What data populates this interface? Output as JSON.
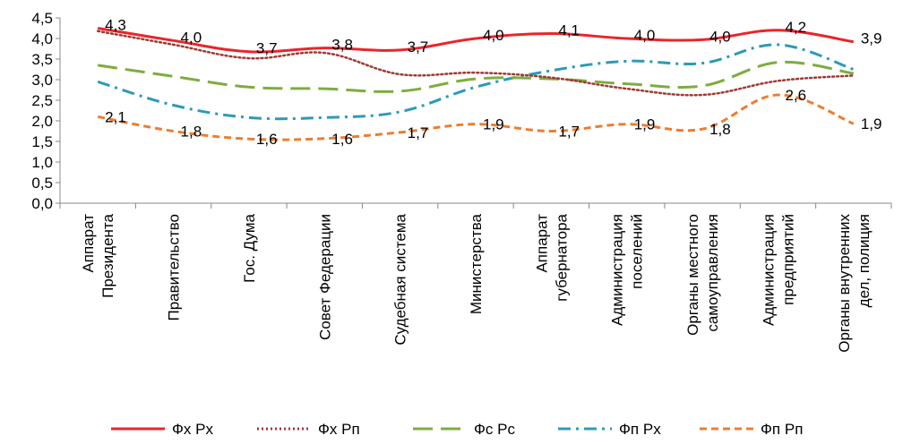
{
  "chart_data": {
    "type": "line",
    "title": "",
    "xlabel": "",
    "ylabel": "",
    "ylim": [
      0,
      4.5
    ],
    "y_ticks": [
      "0,0",
      "0,5",
      "1,0",
      "1,5",
      "2,0",
      "2,5",
      "3,0",
      "3,5",
      "4,0",
      "4,5"
    ],
    "grid": false,
    "legend_position": "bottom",
    "categories": [
      [
        "Аппарат",
        "Президента"
      ],
      [
        "Правительство"
      ],
      [
        "Гос. Дума"
      ],
      [
        "Совет Федерации"
      ],
      [
        "Судебная система"
      ],
      [
        "Министерства"
      ],
      [
        "Аппарат",
        "губернатора"
      ],
      [
        "Администрация",
        "поселений"
      ],
      [
        "Органы местного",
        "самоуправления"
      ],
      [
        "Администрация",
        "предприятий"
      ],
      [
        "Органы внутренних",
        "дел, полиция"
      ]
    ],
    "series": [
      {
        "name": "Фх  Рх",
        "color": "#e8262b",
        "dash": "solid",
        "values": [
          4.25,
          3.95,
          3.68,
          3.77,
          3.72,
          4.0,
          4.12,
          4.0,
          3.97,
          4.2,
          3.92
        ],
        "data_labels": [
          "4,3",
          "4,0",
          "3,7",
          "3,8",
          "3,7",
          "4,0",
          "4,1",
          "4,0",
          "4,0",
          "4,2",
          "3,9"
        ]
      },
      {
        "name": "Фх  Рп",
        "color": "#9e3a33",
        "dash": "dot",
        "values": [
          4.18,
          3.85,
          3.52,
          3.65,
          3.13,
          3.17,
          3.05,
          2.78,
          2.63,
          2.97,
          3.1
        ],
        "data_labels": []
      },
      {
        "name": "Фс  Рс",
        "color": "#7ead3e",
        "dash": "longdash",
        "values": [
          3.35,
          3.08,
          2.82,
          2.78,
          2.72,
          3.02,
          3.02,
          2.9,
          2.85,
          3.42,
          3.15
        ],
        "data_labels": []
      },
      {
        "name": "Фп  Рх",
        "color": "#2b9bb8",
        "dash": "dashdot",
        "values": [
          2.95,
          2.38,
          2.08,
          2.08,
          2.22,
          2.82,
          3.22,
          3.45,
          3.4,
          3.85,
          3.25
        ],
        "data_labels": []
      },
      {
        "name": "Фп  Рп",
        "color": "#ed7d31",
        "dash": "dash",
        "values": [
          2.1,
          1.75,
          1.56,
          1.57,
          1.72,
          1.92,
          1.75,
          1.92,
          1.8,
          2.63,
          1.93
        ],
        "data_labels": [
          "2,1",
          "1,8",
          "1,6",
          "1,6",
          "1,7",
          "1,9",
          "1,7",
          "1,9",
          "1,8",
          "2,6",
          "1,9"
        ]
      }
    ]
  }
}
